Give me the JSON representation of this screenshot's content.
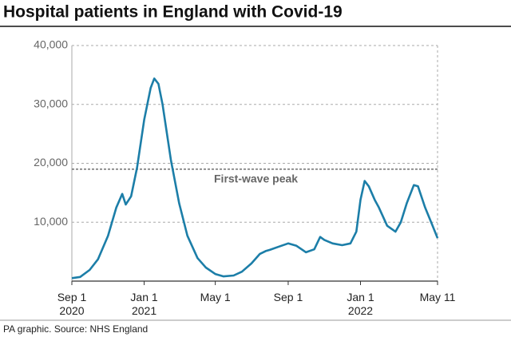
{
  "chart_data": {
    "type": "line",
    "title": "Hospital patients in England with Covid-19",
    "source": "PA graphic. Source: NHS England",
    "annotation": {
      "label": "First-wave peak",
      "value": 19000
    },
    "x": [
      "2020-09-01",
      "2020-09-15",
      "2020-10-01",
      "2020-10-15",
      "2020-11-01",
      "2020-11-15",
      "2020-11-25",
      "2020-12-01",
      "2020-12-10",
      "2020-12-20",
      "2021-01-01",
      "2021-01-12",
      "2021-01-18",
      "2021-01-25",
      "2021-02-01",
      "2021-02-15",
      "2021-03-01",
      "2021-03-15",
      "2021-04-01",
      "2021-04-15",
      "2021-05-01",
      "2021-05-15",
      "2021-06-01",
      "2021-06-15",
      "2021-07-01",
      "2021-07-15",
      "2021-07-25",
      "2021-08-01",
      "2021-08-15",
      "2021-09-01",
      "2021-09-15",
      "2021-10-01",
      "2021-10-15",
      "2021-10-25",
      "2021-11-01",
      "2021-11-15",
      "2021-12-01",
      "2021-12-15",
      "2021-12-25",
      "2022-01-01",
      "2022-01-08",
      "2022-01-15",
      "2022-01-25",
      "2022-02-01",
      "2022-02-15",
      "2022-03-01",
      "2022-03-10",
      "2022-03-20",
      "2022-04-01",
      "2022-04-08",
      "2022-04-20",
      "2022-05-01",
      "2022-05-11"
    ],
    "series": [
      {
        "name": "Hospital patients",
        "color": "#1c7ea8",
        "values": [
          500,
          700,
          1900,
          3700,
          7700,
          12500,
          14800,
          13000,
          14400,
          19300,
          27400,
          32800,
          34400,
          33500,
          30000,
          20600,
          13200,
          7700,
          3900,
          2300,
          1200,
          800,
          950,
          1600,
          3000,
          4600,
          5100,
          5300,
          5800,
          6400,
          6000,
          4900,
          5400,
          7500,
          7000,
          6400,
          6100,
          6400,
          8400,
          13800,
          17000,
          16100,
          13800,
          12500,
          9400,
          8400,
          10000,
          13200,
          16300,
          16100,
          12500,
          9800,
          7300
        ]
      }
    ],
    "xlim": [
      "2020-09-01",
      "2022-05-11"
    ],
    "xticks": [
      {
        "value": "2020-09-01",
        "label": "Sep 1\n2020"
      },
      {
        "value": "2021-01-01",
        "label": "Jan 1\n2021"
      },
      {
        "value": "2021-05-01",
        "label": "May 1"
      },
      {
        "value": "2021-09-01",
        "label": "Sep 1"
      },
      {
        "value": "2022-01-01",
        "label": "Jan 1\n2022"
      },
      {
        "value": "2022-05-11",
        "label": "May 11"
      }
    ],
    "ylim": [
      0,
      40000
    ],
    "yticks": [
      {
        "value": 10000,
        "label": "10,000"
      },
      {
        "value": 20000,
        "label": "20,000"
      },
      {
        "value": 30000,
        "label": "30,000"
      },
      {
        "value": 40000,
        "label": "40,000"
      }
    ],
    "grid": true
  }
}
